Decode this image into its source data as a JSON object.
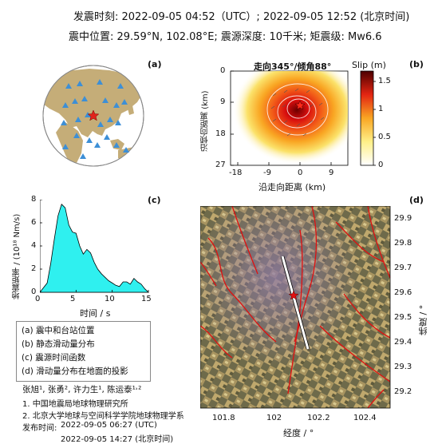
{
  "header": {
    "line1": "发震时刻: 2022-09-05 04:52（UTC）;   2022-09-05  12:52 (北京时间)",
    "line2": "震中位置: 29.59°N,  102.08°E;  震源深度: 10千米; 矩震级: Mw6.6"
  },
  "panels": {
    "a": {
      "tag": "(a)"
    },
    "b": {
      "tag": "(b)",
      "title": "走向345°/倾角88°",
      "xlabel": "沿走向距离 (km)",
      "ylabel": "沿倾向距离 (km)",
      "xticks": [
        "-18",
        "-9",
        "0",
        "9"
      ],
      "yticks": [
        "0",
        "9",
        "18",
        "27"
      ],
      "colorbar_label": "Slip (m)",
      "colorbar_ticks": [
        "1.5",
        "1",
        "0.5",
        "0"
      ]
    },
    "c": {
      "tag": "(c)",
      "xlabel": "时间 / s",
      "ylabel": "地震矩率 / (10¹⁸ Nm/s)",
      "xticks": [
        "0",
        "5",
        "10",
        "15"
      ],
      "yticks": [
        "0",
        "2",
        "4",
        "6",
        "8"
      ]
    },
    "d": {
      "tag": "(d)",
      "xlabel": "经度 / °",
      "ylabel": "纬度 / °",
      "xticks": [
        "101.8",
        "102",
        "102.2",
        "102.4"
      ],
      "yticks": [
        "29.9",
        "29.8",
        "29.7",
        "29.6",
        "29.5",
        "29.4",
        "29.3",
        "29.2"
      ]
    }
  },
  "legend": [
    "(a) 震中和台站位置",
    "(b) 静态滑动量分布",
    "(c) 震源时间函数",
    "(d) 滑动量分布在地面的投影"
  ],
  "credits": {
    "authors": "张旭¹, 张勇², 许力生¹, 陈运泰¹˒²",
    "affil1": "1. 中国地震局地球物理研究所",
    "affil2": "2. 北京大学地球与空间科学学院地球物理学系",
    "release_label": "发布时间:",
    "release_utc": "2022-09-05  06:27 (UTC)",
    "release_bj": "2022-09-05  14:27 (北京时间)"
  },
  "chart_data": [
    {
      "type": "area",
      "panel": "c",
      "title": "",
      "xlabel": "时间 / s",
      "ylabel": "地震矩率 / (10¹⁸ Nm/s)",
      "xlim": [
        0,
        15
      ],
      "ylim": [
        0,
        8
      ],
      "x": [
        0,
        1,
        1.5,
        2,
        2.5,
        3,
        3.5,
        4,
        4.5,
        5,
        5.5,
        6,
        6.5,
        7,
        7.5,
        8,
        8.5,
        9,
        9.5,
        10,
        10.5,
        11,
        11.5,
        12,
        12.5,
        13,
        13.5,
        14,
        14.5,
        15
      ],
      "y": [
        0,
        0.8,
        2.5,
        4.6,
        6.6,
        7.6,
        7.3,
        5.8,
        5.2,
        5.1,
        4.0,
        3.3,
        3.7,
        3.4,
        2.6,
        2.0,
        1.6,
        1.3,
        1.0,
        0.8,
        0.6,
        0.5,
        0.9,
        0.9,
        0.7,
        1.2,
        0.9,
        0.7,
        0.3,
        0
      ]
    },
    {
      "type": "heatmap",
      "panel": "b",
      "title": "走向345°/倾角88°",
      "xlabel": "沿走向距离 (km)",
      "ylabel": "沿倾向距离 (km)",
      "xlim": [
        -22,
        15
      ],
      "ylim": [
        27,
        0
      ],
      "clim": [
        0,
        1.7
      ],
      "peak_slip": 1.7,
      "hypocenter": [
        0,
        10
      ]
    }
  ]
}
